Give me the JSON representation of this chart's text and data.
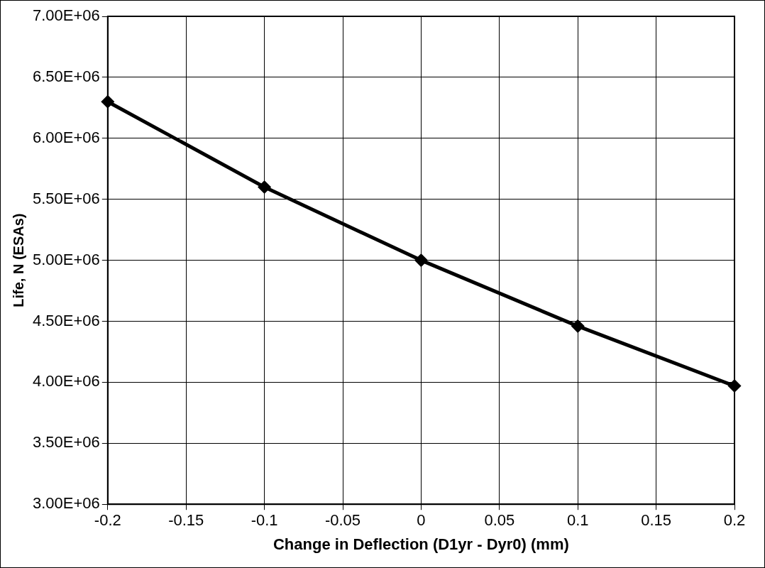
{
  "chart_data": {
    "type": "line",
    "xlabel": "Change in Deflection (D1yr - Dyr0) (mm)",
    "ylabel": "Life, N (ESAs)",
    "x": [
      -0.2,
      -0.1,
      0,
      0.1,
      0.2
    ],
    "series": [
      {
        "color": "#000000",
        "values": [
          6300000,
          5600000,
          5000000,
          4460000,
          3970000
        ]
      }
    ],
    "xlim": [
      -0.2,
      0.2
    ],
    "xticks": [
      -0.2,
      -0.15,
      -0.1,
      -0.05,
      0,
      0.05,
      0.1,
      0.15,
      0.2
    ],
    "ylim": [
      3000000,
      7000000
    ],
    "yticks": [
      {
        "value": 3000000,
        "label": "3.00E+06"
      },
      {
        "value": 3500000,
        "label": "3.50E+06"
      },
      {
        "value": 4000000,
        "label": "4.00E+06"
      },
      {
        "value": 4500000,
        "label": "4.50E+06"
      },
      {
        "value": 5000000,
        "label": "5.00E+06"
      },
      {
        "value": 5500000,
        "label": "5.50E+06"
      },
      {
        "value": 6000000,
        "label": "6.00E+06"
      },
      {
        "value": 6500000,
        "label": "6.50E+06"
      },
      {
        "value": 7000000,
        "label": "7.00E+06"
      }
    ],
    "grid": true,
    "marker": "diamond",
    "line_style": "solid",
    "legend": false
  }
}
